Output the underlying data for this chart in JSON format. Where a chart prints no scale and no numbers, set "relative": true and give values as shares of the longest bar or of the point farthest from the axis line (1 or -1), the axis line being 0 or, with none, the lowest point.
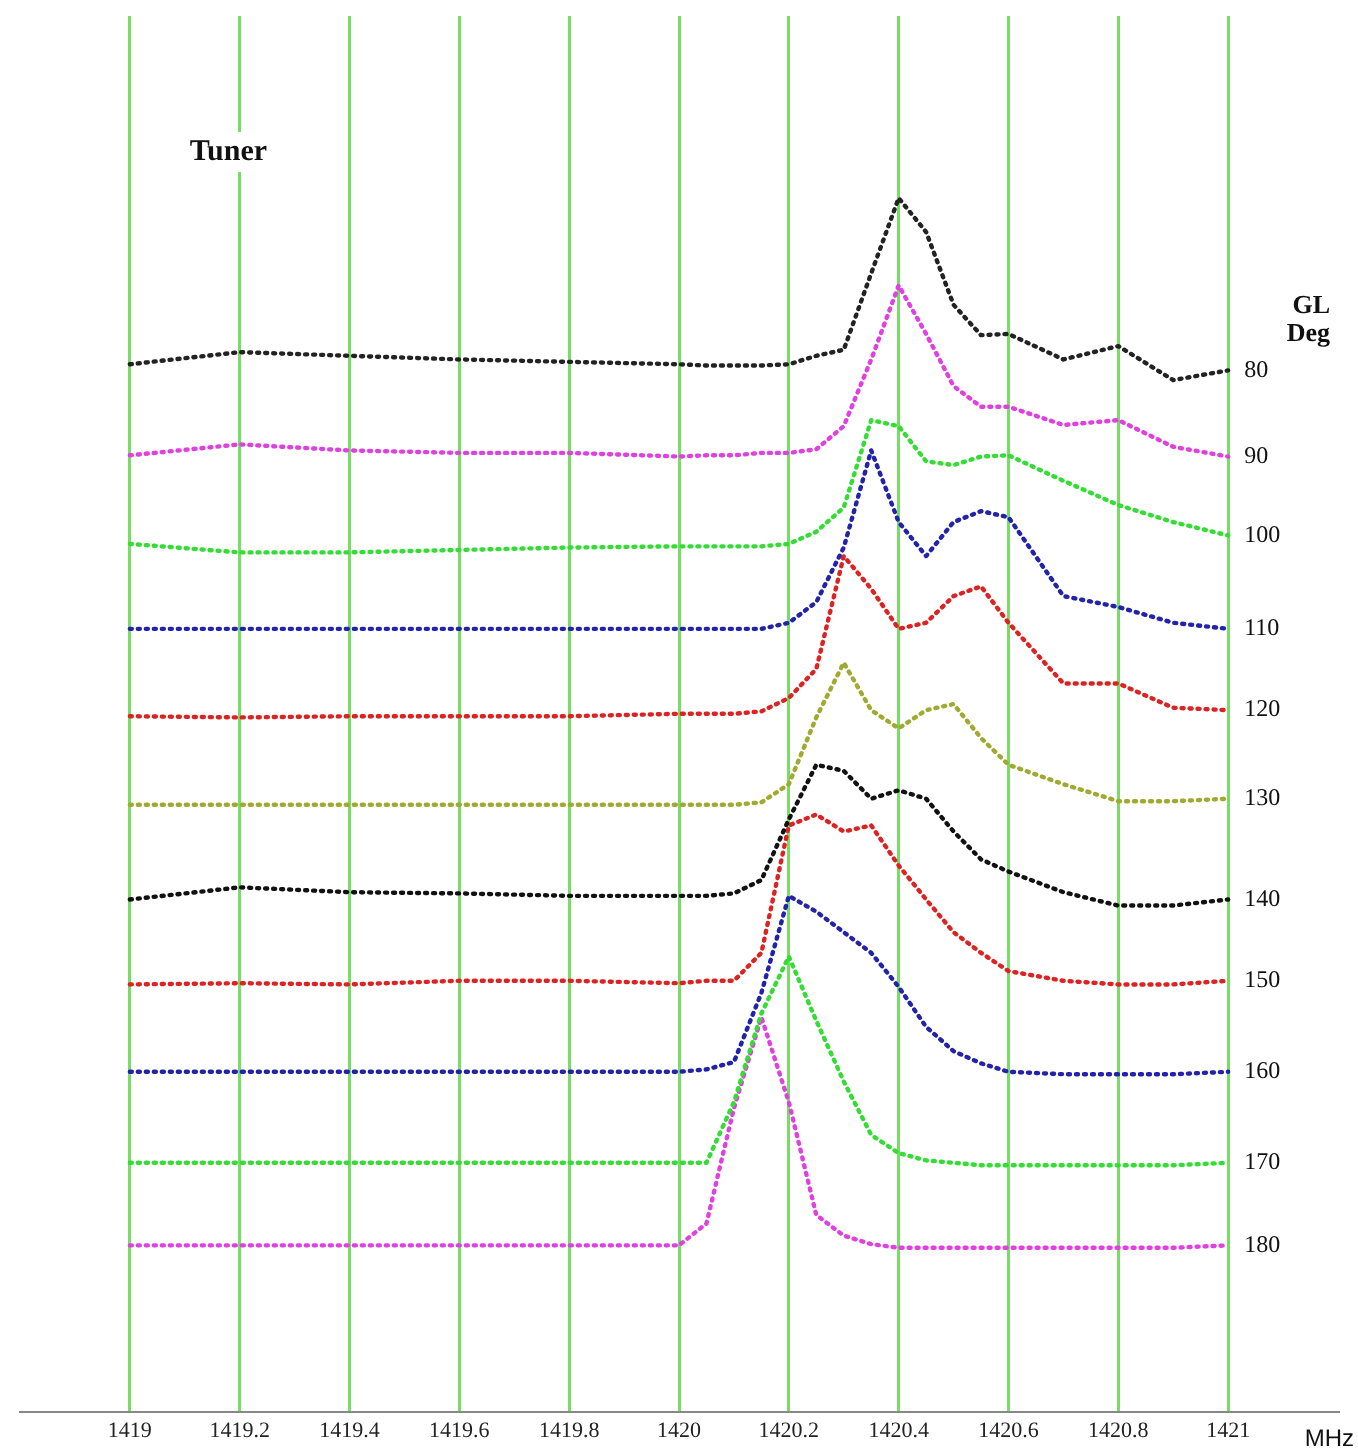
{
  "chart_data": {
    "type": "line",
    "title": "Tuner",
    "legend_title": "GL\nDeg",
    "xlabel": "MHz",
    "relative": true,
    "grid": "x",
    "legend": false,
    "marker": "none",
    "line_style": "dotted",
    "xlim": [
      1418.8,
      1421.2
    ],
    "xticks": [
      1419,
      1419.2,
      1419.4,
      1419.6,
      1419.8,
      1420,
      1420.2,
      1420.4,
      1420.6,
      1420.8,
      1421
    ],
    "x": [
      1419,
      1419.2,
      1419.4,
      1419.6,
      1419.8,
      1420,
      1420.05,
      1420.1,
      1420.15,
      1420.2,
      1420.25,
      1420.3,
      1420.35,
      1420.4,
      1420.45,
      1420.5,
      1420.55,
      1420.6,
      1420.7,
      1420.8,
      1420.9,
      1421
    ],
    "series": [
      {
        "name": "80",
        "color": "#222222",
        "values": [
          0.863,
          0.873,
          0.87,
          0.867,
          0.865,
          0.863,
          0.862,
          0.862,
          0.862,
          0.863,
          0.87,
          0.875,
          0.938,
          1,
          0.972,
          0.912,
          0.887,
          0.888,
          0.867,
          0.878,
          0.85,
          0.858
        ]
      },
      {
        "name": "90",
        "color": "#e040e0",
        "values": [
          0.788,
          0.797,
          0.792,
          0.79,
          0.79,
          0.787,
          0.788,
          0.788,
          0.79,
          0.79,
          0.793,
          0.812,
          0.867,
          0.928,
          0.888,
          0.845,
          0.828,
          0.828,
          0.813,
          0.817,
          0.795,
          0.787
        ]
      },
      {
        "name": "100",
        "color": "#33dd33",
        "values": [
          0.715,
          0.708,
          0.708,
          0.71,
          0.712,
          0.713,
          0.713,
          0.713,
          0.713,
          0.715,
          0.725,
          0.745,
          0.817,
          0.812,
          0.783,
          0.78,
          0.787,
          0.788,
          0.767,
          0.747,
          0.733,
          0.722
        ]
      },
      {
        "name": "110",
        "color": "#2222aa",
        "values": [
          0.645,
          0.645,
          0.645,
          0.645,
          0.645,
          0.645,
          0.645,
          0.645,
          0.645,
          0.65,
          0.667,
          0.712,
          0.792,
          0.733,
          0.705,
          0.733,
          0.742,
          0.737,
          0.672,
          0.663,
          0.65,
          0.645
        ]
      },
      {
        "name": "120",
        "color": "#dd2222",
        "values": [
          0.573,
          0.572,
          0.573,
          0.573,
          0.573,
          0.575,
          0.575,
          0.575,
          0.577,
          0.588,
          0.612,
          0.705,
          0.678,
          0.645,
          0.65,
          0.672,
          0.68,
          0.65,
          0.6,
          0.6,
          0.58,
          0.578
        ]
      },
      {
        "name": "130",
        "color": "#a0aa30",
        "values": [
          0.5,
          0.5,
          0.5,
          0.5,
          0.5,
          0.5,
          0.5,
          0.5,
          0.502,
          0.517,
          0.572,
          0.617,
          0.578,
          0.563,
          0.578,
          0.583,
          0.555,
          0.533,
          0.517,
          0.503,
          0.503,
          0.505
        ]
      },
      {
        "name": "140",
        "color": "#111111",
        "values": [
          0.422,
          0.432,
          0.428,
          0.427,
          0.425,
          0.425,
          0.425,
          0.427,
          0.438,
          0.488,
          0.533,
          0.528,
          0.505,
          0.512,
          0.505,
          0.478,
          0.455,
          0.445,
          0.428,
          0.417,
          0.417,
          0.422
        ]
      },
      {
        "name": "150",
        "color": "#dd2222",
        "values": [
          0.352,
          0.353,
          0.352,
          0.355,
          0.355,
          0.353,
          0.355,
          0.355,
          0.378,
          0.483,
          0.492,
          0.478,
          0.483,
          0.45,
          0.422,
          0.395,
          0.378,
          0.363,
          0.355,
          0.352,
          0.352,
          0.355
        ]
      },
      {
        "name": "160",
        "color": "#2222aa",
        "values": [
          0.28,
          0.28,
          0.28,
          0.28,
          0.28,
          0.28,
          0.282,
          0.288,
          0.345,
          0.425,
          0.412,
          0.395,
          0.378,
          0.35,
          0.317,
          0.297,
          0.287,
          0.28,
          0.278,
          0.278,
          0.278,
          0.28
        ]
      },
      {
        "name": "170",
        "color": "#33dd33",
        "values": [
          0.205,
          0.205,
          0.205,
          0.205,
          0.205,
          0.205,
          0.205,
          0.255,
          0.328,
          0.375,
          0.322,
          0.272,
          0.228,
          0.213,
          0.207,
          0.205,
          0.203,
          0.203,
          0.203,
          0.203,
          0.203,
          0.205
        ]
      },
      {
        "name": "180",
        "color": "#e040e0",
        "values": [
          0.137,
          0.137,
          0.137,
          0.137,
          0.137,
          0.137,
          0.155,
          0.25,
          0.325,
          0.255,
          0.162,
          0.145,
          0.138,
          0.135,
          0.135,
          0.135,
          0.135,
          0.135,
          0.135,
          0.135,
          0.135,
          0.137
        ]
      }
    ]
  }
}
